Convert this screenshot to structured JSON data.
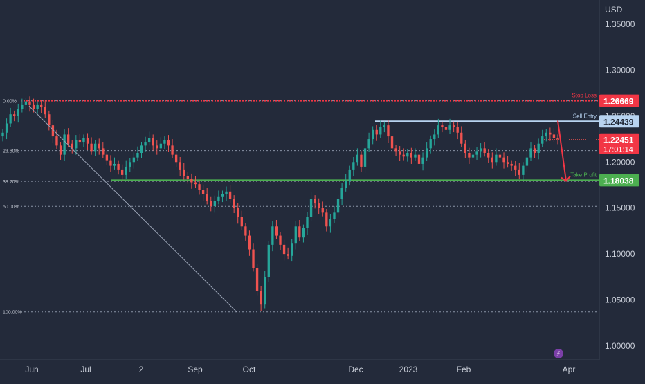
{
  "currency_label": "USD",
  "colors": {
    "background": "#232a3a",
    "up": "#26a69a",
    "down": "#ef5350",
    "stop": "#f23645",
    "entry": "#b8d3f0",
    "target": "#4caf50",
    "grid": "#8a94a6",
    "text": "#c9ced8"
  },
  "icons": [
    "lightning-icon"
  ],
  "chart_data": {
    "type": "candlestick",
    "title": "",
    "xlabel": "",
    "ylabel": "USD",
    "ylim": [
      0.97,
      1.38
    ],
    "y_ticks": [
      1.35,
      1.3,
      1.25,
      1.2,
      1.15,
      1.1,
      1.05,
      1.0
    ],
    "y_tick_labels": [
      "1.35000",
      "1.30000",
      "1.25000",
      "1.20000",
      "1.15000",
      "1.10000",
      "1.05000",
      "1.00000"
    ],
    "x_axis_labels": [
      "Jun",
      "Jul",
      "2",
      "Sep",
      "Oct",
      "Dec",
      "2023",
      "Feb",
      "Apr"
    ],
    "grid": false,
    "fibonacci": [
      {
        "label": "0.00%",
        "value": 1.2667
      },
      {
        "label": "23.60%",
        "value": 1.2125
      },
      {
        "label": "38.20%",
        "value": 1.179
      },
      {
        "label": "50.00%",
        "value": 1.1519
      },
      {
        "label": "100.00%",
        "value": 1.0371
      }
    ],
    "levels": [
      {
        "name": "Stop Loss",
        "value": 1.26669,
        "label": "1.26669",
        "role": "stop"
      },
      {
        "name": "Sell Entry",
        "value": 1.24439,
        "label": "1.24439",
        "role": "entry"
      },
      {
        "name": "Take Profit",
        "value": 1.18038,
        "label": "1.18038",
        "role": "target"
      }
    ],
    "current_price": {
      "value": 1.22451,
      "label": "1.22451",
      "countdown": "17:01:14"
    },
    "projection": {
      "from": 1.245,
      "to": 1.1795
    },
    "trend_line": {
      "from": 1.261,
      "to": 1.0371
    },
    "closes": [
      1.232,
      1.242,
      1.252,
      1.25,
      1.258,
      1.262,
      1.266,
      1.262,
      1.258,
      1.262,
      1.26,
      1.252,
      1.24,
      1.228,
      1.218,
      1.208,
      1.23,
      1.22,
      1.215,
      1.224,
      1.222,
      1.226,
      1.22,
      1.212,
      1.22,
      1.215,
      1.208,
      1.202,
      1.196,
      1.198,
      1.192,
      1.186,
      1.195,
      1.2,
      1.205,
      1.21,
      1.218,
      1.222,
      1.226,
      1.218,
      1.215,
      1.22,
      1.224,
      1.218,
      1.208,
      1.2,
      1.192,
      1.185,
      1.182,
      1.178,
      1.176,
      1.17,
      1.165,
      1.158,
      1.152,
      1.158,
      1.162,
      1.165,
      1.168,
      1.16,
      1.15,
      1.14,
      1.13,
      1.12,
      1.105,
      1.085,
      1.06,
      1.045,
      1.075,
      1.11,
      1.13,
      1.12,
      1.11,
      1.1,
      1.098,
      1.112,
      1.13,
      1.118,
      1.128,
      1.14,
      1.16,
      1.155,
      1.15,
      1.145,
      1.13,
      1.138,
      1.145,
      1.16,
      1.172,
      1.18,
      1.192,
      1.2,
      1.208,
      1.195,
      1.215,
      1.225,
      1.235,
      1.23,
      1.238,
      1.24,
      1.228,
      1.215,
      1.212,
      1.208,
      1.206,
      1.21,
      1.205,
      1.208,
      1.198,
      1.205,
      1.215,
      1.225,
      1.23,
      1.24,
      1.238,
      1.235,
      1.24,
      1.238,
      1.232,
      1.22,
      1.21,
      1.205,
      1.208,
      1.212,
      1.215,
      1.21,
      1.205,
      1.2,
      1.208,
      1.205,
      1.2,
      1.198,
      1.196,
      1.192,
      1.186,
      1.196,
      1.205,
      1.215,
      1.21,
      1.22,
      1.228,
      1.232,
      1.23,
      1.226,
      1.225
    ]
  }
}
